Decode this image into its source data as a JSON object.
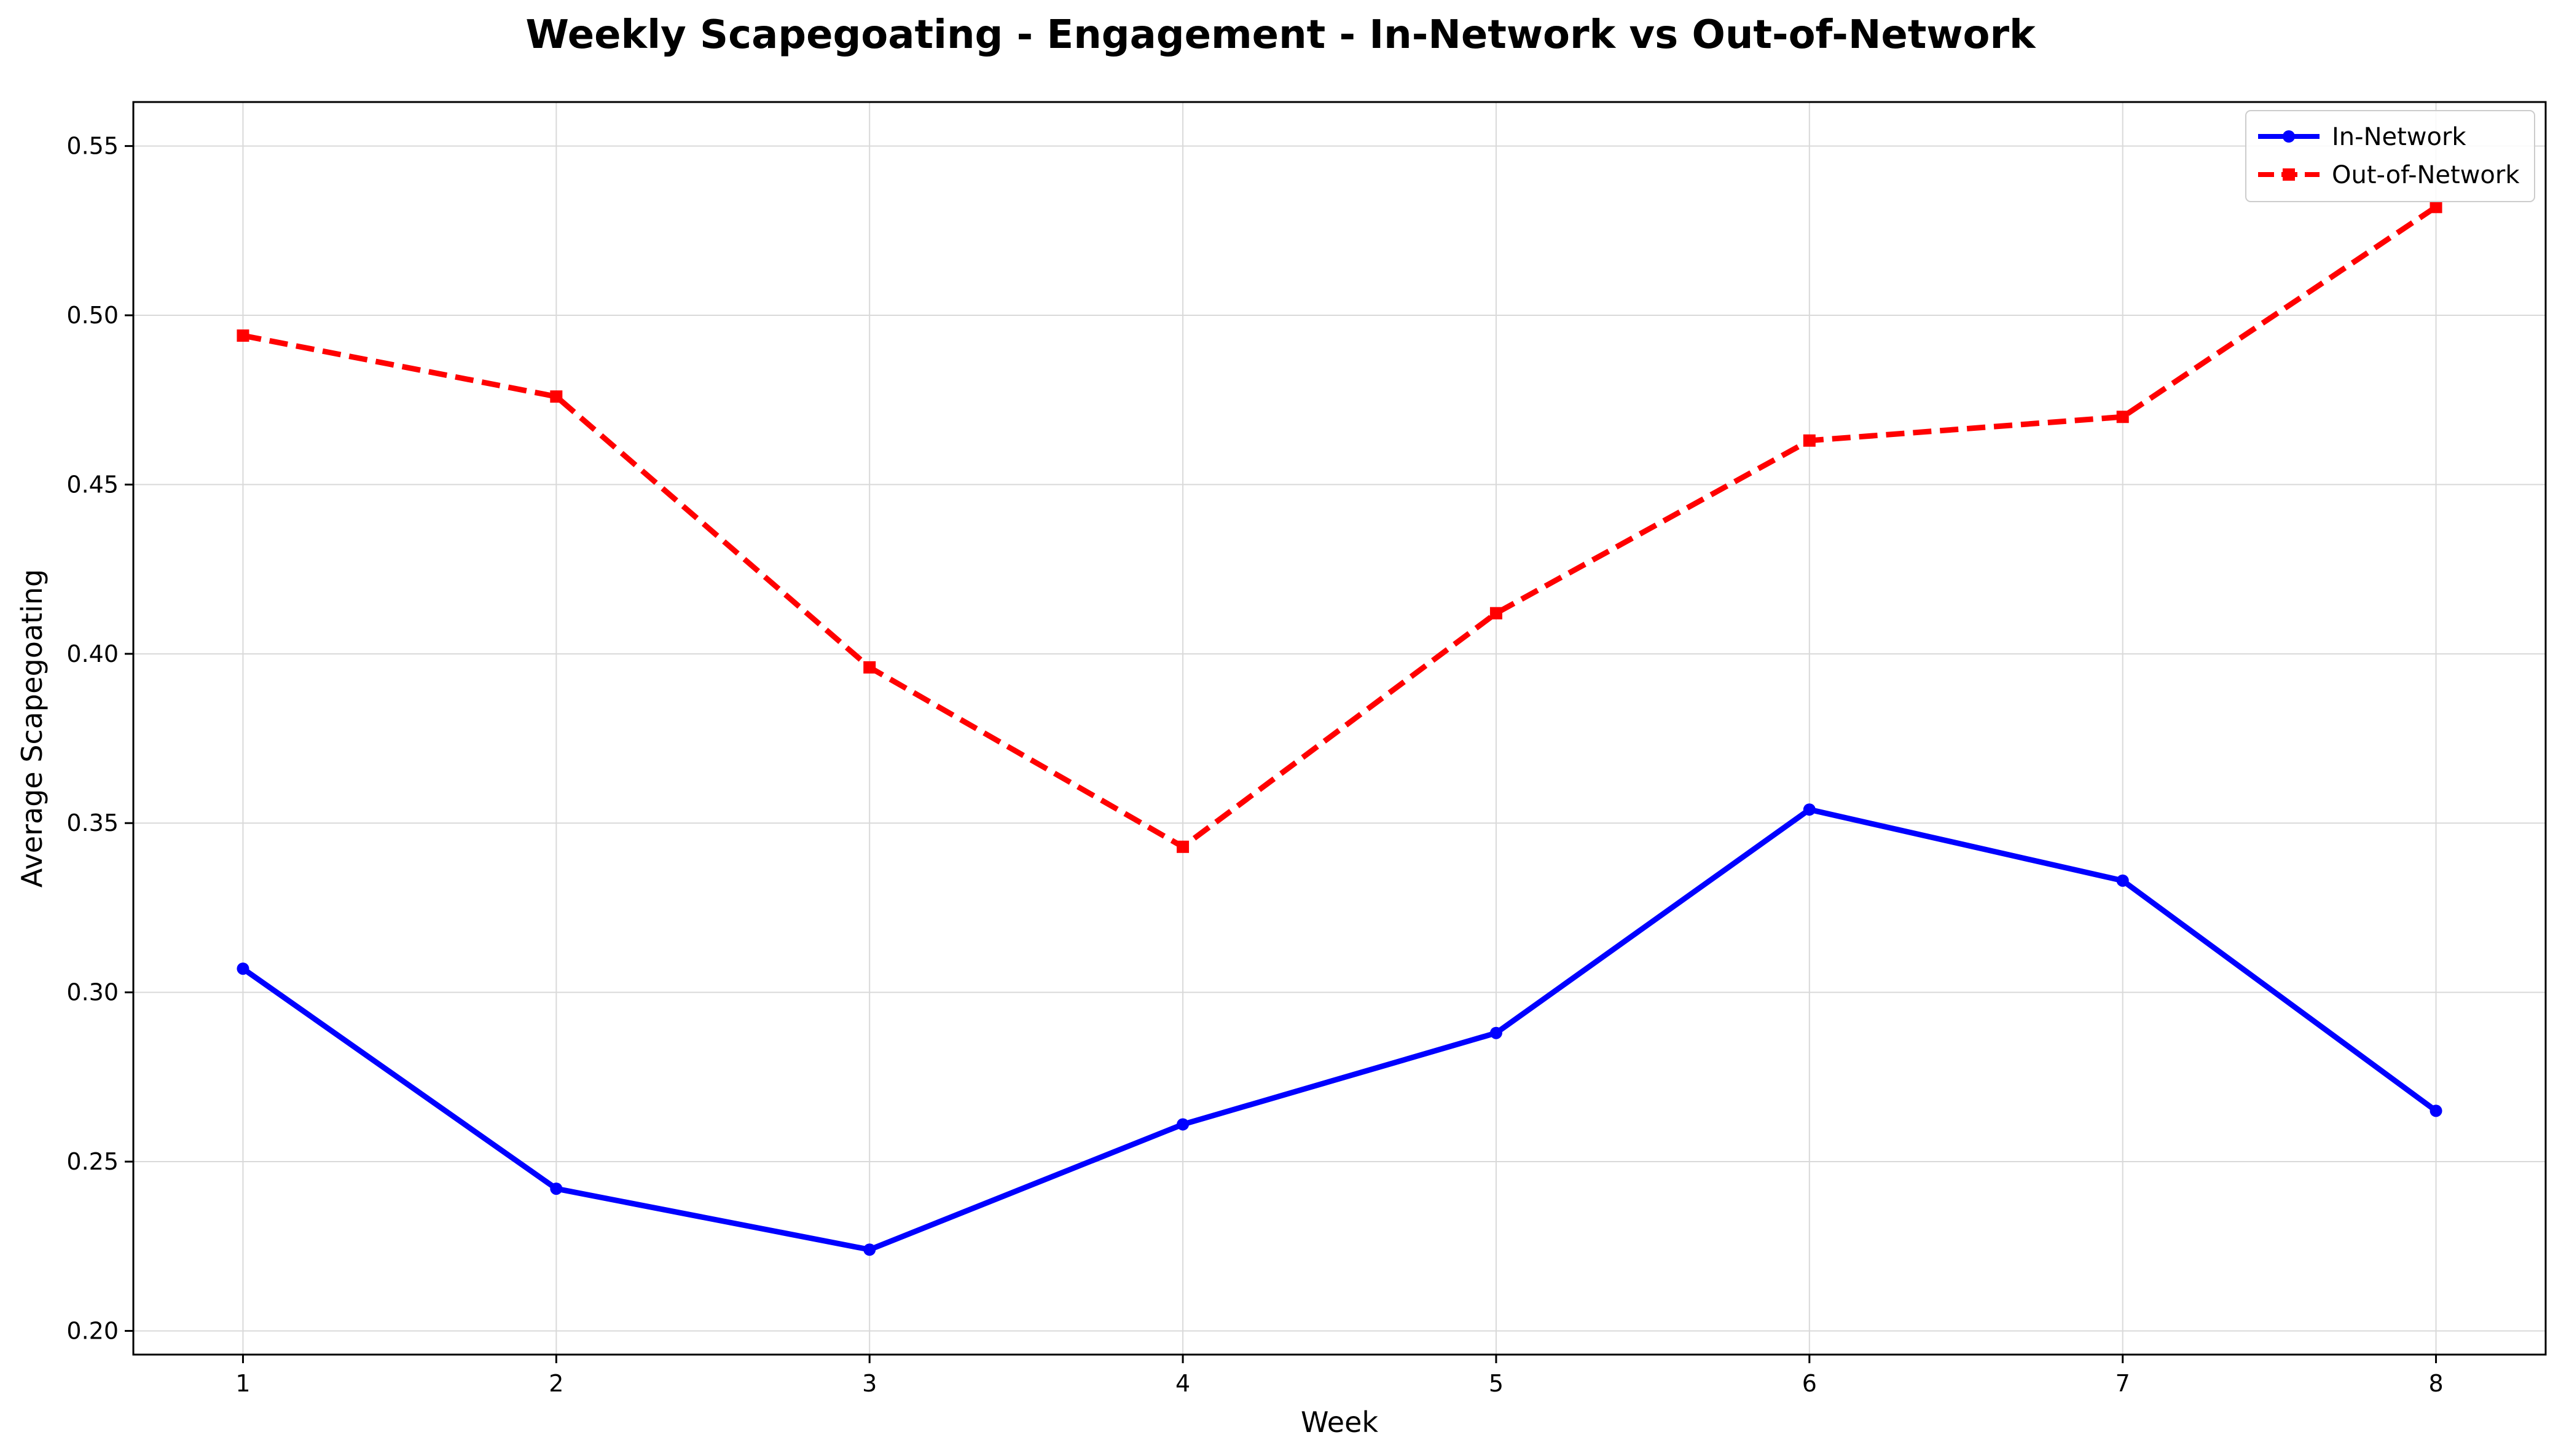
{
  "chart_data": {
    "type": "line",
    "title": "Weekly Scapegoating - Engagement - In-Network vs Out-of-Network",
    "xlabel": "Week",
    "ylabel": "Average Scapegoating",
    "x": [
      1,
      2,
      3,
      4,
      5,
      6,
      7,
      8
    ],
    "xlim": [
      0.65,
      8.35
    ],
    "ylim": [
      0.193,
      0.563
    ],
    "yticks": [
      "0.20",
      "0.25",
      "0.30",
      "0.35",
      "0.40",
      "0.45",
      "0.50",
      "0.55"
    ],
    "xticks": [
      "1",
      "2",
      "3",
      "4",
      "5",
      "6",
      "7",
      "8"
    ],
    "grid": true,
    "legend_position": "top-right",
    "series": [
      {
        "name": "In-Network",
        "color": "#0000ff",
        "line_style": "solid",
        "marker": "circle",
        "values": [
          0.307,
          0.242,
          0.224,
          0.261,
          0.288,
          0.354,
          0.333,
          0.265
        ]
      },
      {
        "name": "Out-of-Network",
        "color": "#ff0000",
        "line_style": "dashed",
        "marker": "square",
        "values": [
          0.494,
          0.476,
          0.396,
          0.343,
          0.412,
          0.463,
          0.47,
          0.532
        ]
      }
    ]
  }
}
